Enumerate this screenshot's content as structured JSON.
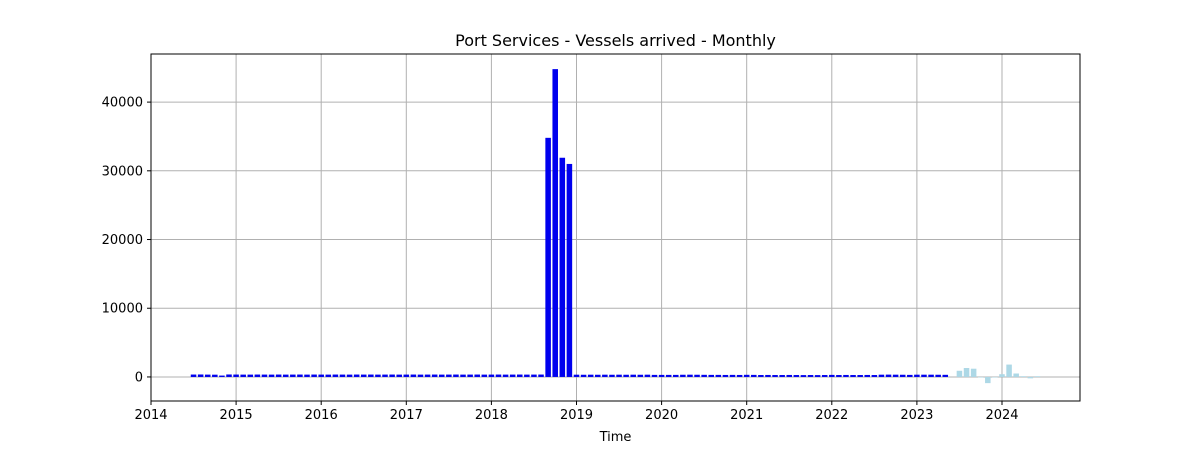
{
  "chart_data": {
    "type": "bar",
    "title": "Port Services - Vessels arrived - Monthly",
    "xlabel": "Time",
    "ylabel": "",
    "grid": true,
    "xlim": [
      "2014-01-01",
      "2024-12-01"
    ],
    "ylim": [
      -3500,
      47000
    ],
    "x_ticks": [
      "2014",
      "2015",
      "2016",
      "2017",
      "2018",
      "2019",
      "2020",
      "2021",
      "2022",
      "2023",
      "2024"
    ],
    "y_ticks": [
      0,
      10000,
      20000,
      30000,
      40000
    ],
    "colors": {
      "observed": "#0000ee",
      "forecast": "#add8e6"
    },
    "series": [
      {
        "role": "observed",
        "start": "2014-07",
        "values": [
          350,
          360,
          340,
          330,
          200,
          360,
          350,
          340,
          340,
          350,
          345,
          340,
          350,
          340,
          345,
          350,
          340,
          350,
          345,
          340,
          350,
          345,
          340,
          350,
          345,
          350,
          340,
          345,
          350,
          340,
          345,
          350,
          340,
          345,
          350,
          340,
          345,
          350,
          340,
          345,
          350,
          340,
          345,
          350,
          340,
          345,
          350,
          340,
          345,
          350,
          34800,
          44800,
          31900,
          31000,
          330,
          320,
          330,
          320,
          330,
          320,
          330,
          320,
          330,
          320,
          330,
          300,
          300,
          300,
          300,
          320,
          330,
          320,
          310,
          300,
          300,
          290,
          300,
          290,
          310,
          300,
          280,
          290,
          280,
          280,
          290,
          280,
          270,
          280,
          270,
          280,
          300,
          280,
          290,
          280,
          280,
          290,
          280,
          330,
          340,
          330,
          320,
          300,
          330,
          330,
          330,
          320,
          310
        ]
      },
      {
        "role": "forecast",
        "start": "2023-07",
        "values": [
          900,
          1300,
          1200,
          0,
          -900,
          0,
          400,
          1800,
          500,
          100,
          -200,
          100
        ]
      }
    ]
  }
}
